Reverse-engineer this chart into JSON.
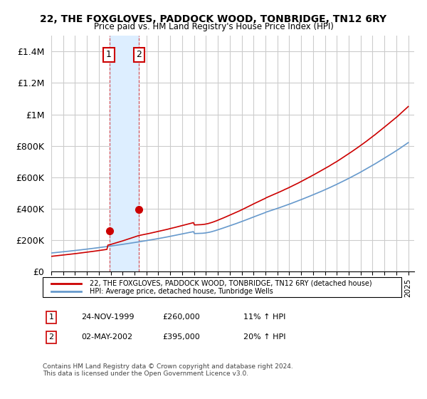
{
  "title": "22, THE FOXGLOVES, PADDOCK WOOD, TONBRIDGE, TN12 6RY",
  "subtitle": "Price paid vs. HM Land Registry's House Price Index (HPI)",
  "legend_line1": "22, THE FOXGLOVES, PADDOCK WOOD, TONBRIDGE, TN12 6RY (detached house)",
  "legend_line2": "HPI: Average price, detached house, Tunbridge Wells",
  "footnote": "Contains HM Land Registry data © Crown copyright and database right 2024.\nThis data is licensed under the Open Government Licence v3.0.",
  "annotation1_label": "1",
  "annotation1_date": "24-NOV-1999",
  "annotation1_price": "£260,000",
  "annotation1_hpi": "11% ↑ HPI",
  "annotation2_label": "2",
  "annotation2_date": "02-MAY-2002",
  "annotation2_price": "£395,000",
  "annotation2_hpi": "20% ↑ HPI",
  "red_color": "#cc0000",
  "blue_color": "#6699cc",
  "highlight_color": "#ddeeff",
  "grid_color": "#cccccc",
  "background_color": "#ffffff",
  "ylim": [
    0,
    1500000
  ],
  "yticks": [
    0,
    200000,
    400000,
    600000,
    800000,
    1000000,
    1200000,
    1400000
  ],
  "ytick_labels": [
    "£0",
    "£200K",
    "£400K",
    "£600K",
    "£800K",
    "£1M",
    "£1.2M",
    "£1.4M"
  ],
  "sale1_x": 1999.9,
  "sale1_y": 260000,
  "sale2_x": 2002.33,
  "sale2_y": 395000,
  "highlight_xmin": 1999.9,
  "highlight_xmax": 2002.33,
  "xmin": 1995.0,
  "xmax": 2025.5
}
